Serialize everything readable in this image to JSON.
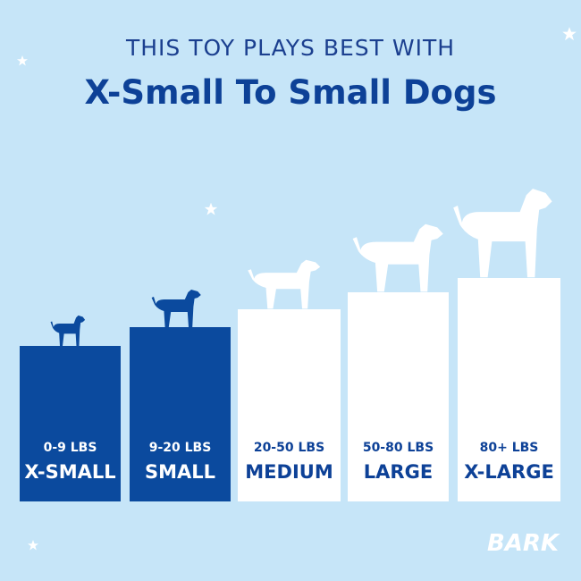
{
  "header": {
    "title": "THIS TOY PLAYS BEST WITH",
    "subtitle": "X-Small To Small Dogs"
  },
  "tiers": [
    {
      "weight": "0-9 LBS",
      "size": "X-SMALL",
      "color": "#0b4a9e"
    },
    {
      "weight": "9-20 LBS",
      "size": "SMALL",
      "color": "#0b4a9e"
    },
    {
      "weight": "20-50 LBS",
      "size": "MEDIUM",
      "color": "#ffffff"
    },
    {
      "weight": "50-80 LBS",
      "size": "LARGE",
      "color": "#ffffff"
    },
    {
      "weight": "80+ LBS",
      "size": "X-LARGE",
      "color": "#ffffff"
    }
  ],
  "logo": "BARK"
}
